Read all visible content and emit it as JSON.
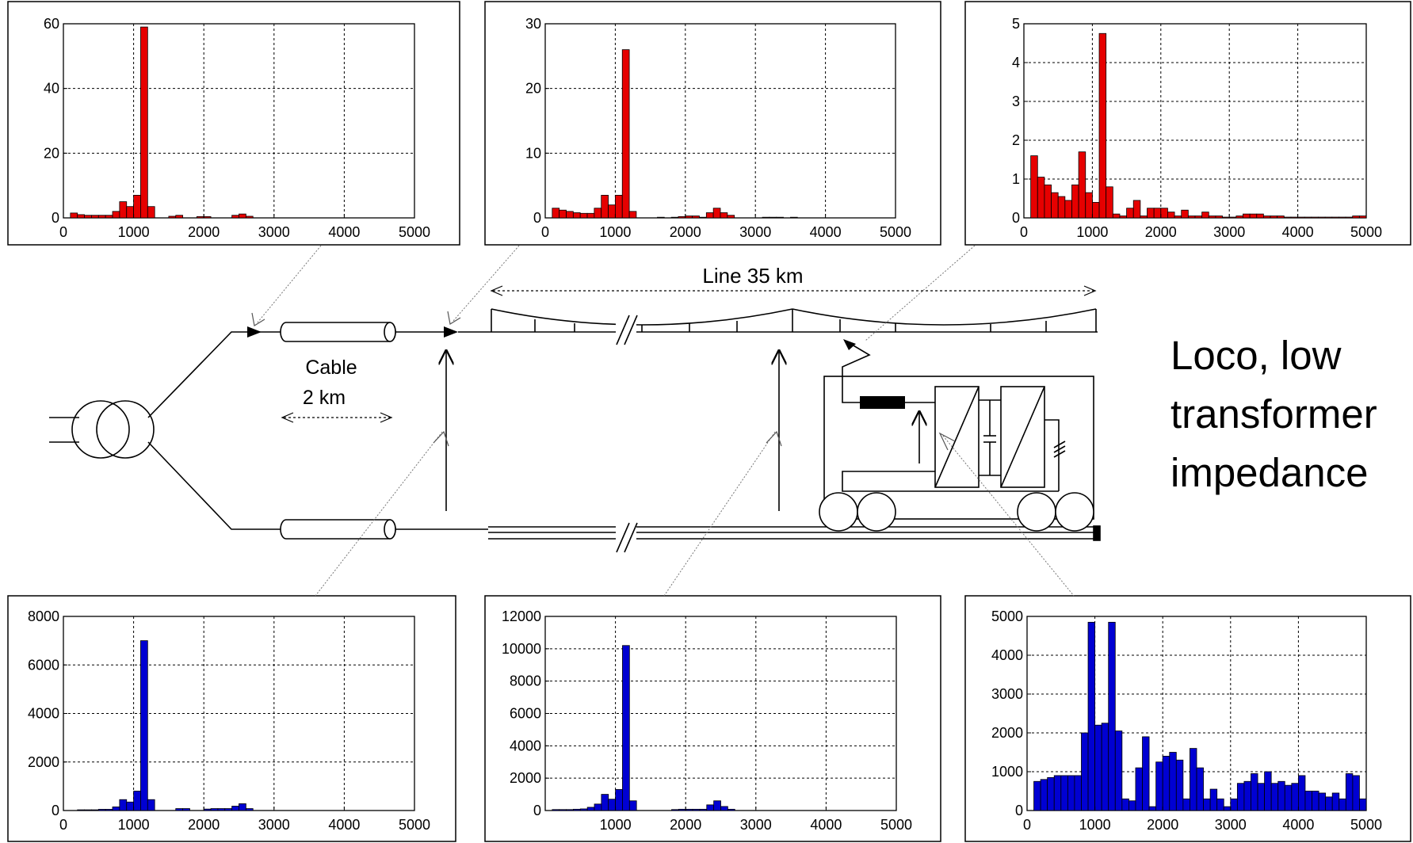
{
  "diagram": {
    "line_label": "Line 35 km",
    "cable_label_1": "Cable",
    "cable_label_2": "2 km",
    "loco_label": [
      "Loco, low",
      "transformer",
      "impedance"
    ]
  },
  "colors": {
    "red": "#e60000",
    "blue": "#0000d2",
    "line": "#000000"
  },
  "chart_data": [
    {
      "type": "bar",
      "color": "red",
      "xlim": [
        0,
        5000
      ],
      "ylim": [
        0,
        60
      ],
      "xticks": [
        0,
        1000,
        2000,
        3000,
        4000,
        5000
      ],
      "yticks": [
        0,
        20,
        40,
        60
      ],
      "x": [
        150,
        250,
        350,
        450,
        550,
        650,
        750,
        850,
        950,
        1050,
        1150,
        1250,
        1550,
        1650,
        1950,
        2050,
        2450,
        2550,
        2650
      ],
      "values": [
        1.5,
        1,
        0.8,
        0.8,
        0.8,
        0.8,
        2,
        5,
        3.5,
        7,
        59,
        3.5,
        0.5,
        0.8,
        0.4,
        0.4,
        0.8,
        1.2,
        0.5
      ]
    },
    {
      "type": "bar",
      "color": "red",
      "xlim": [
        0,
        5000
      ],
      "ylim": [
        0,
        30
      ],
      "xticks": [
        0,
        1000,
        2000,
        3000,
        4000,
        5000
      ],
      "yticks": [
        0,
        10,
        20,
        30
      ],
      "x": [
        150,
        250,
        350,
        450,
        550,
        650,
        750,
        850,
        950,
        1050,
        1150,
        1250,
        1650,
        1850,
        1950,
        2050,
        2150,
        2250,
        2350,
        2450,
        2550,
        2650,
        3150,
        3250,
        3350,
        3550
      ],
      "values": [
        1.5,
        1.2,
        1,
        0.8,
        0.7,
        0.7,
        1.5,
        3.5,
        2,
        3.5,
        26,
        1,
        0.1,
        0.1,
        0.2,
        0.3,
        0.3,
        0.1,
        0.8,
        1.5,
        0.8,
        0.4,
        0.1,
        0.1,
        0.1,
        0.1
      ]
    },
    {
      "type": "bar",
      "color": "red",
      "xlim": [
        0,
        5000
      ],
      "ylim": [
        0,
        5
      ],
      "xticks": [
        0,
        1000,
        2000,
        3000,
        4000,
        5000
      ],
      "yticks": [
        0,
        1,
        2,
        3,
        4,
        5
      ],
      "x": [
        150,
        250,
        350,
        450,
        550,
        650,
        750,
        850,
        950,
        1050,
        1150,
        1250,
        1350,
        1450,
        1550,
        1650,
        1750,
        1850,
        1950,
        2050,
        2150,
        2250,
        2350,
        2450,
        2550,
        2650,
        2750,
        2850,
        2950,
        3050,
        3150,
        3250,
        3350,
        3450,
        3550,
        3650,
        3750,
        3850,
        3950,
        4050,
        4150,
        4250,
        4350,
        4450,
        4550,
        4650,
        4750,
        4850,
        4950
      ],
      "values": [
        1.6,
        1.05,
        0.85,
        0.65,
        0.55,
        0.45,
        0.85,
        1.7,
        0.65,
        0.4,
        4.75,
        0.8,
        0.1,
        0.05,
        0.25,
        0.45,
        0.05,
        0.25,
        0.25,
        0.25,
        0.15,
        0.05,
        0.2,
        0.05,
        0.05,
        0.15,
        0.05,
        0.05,
        0.02,
        0.02,
        0.05,
        0.1,
        0.1,
        0.1,
        0.05,
        0.05,
        0.05,
        0.02,
        0.02,
        0.02,
        0.02,
        0.02,
        0.02,
        0.02,
        0.02,
        0.02,
        0.02,
        0.05,
        0.05
      ]
    },
    {
      "type": "bar",
      "color": "blue",
      "xlim": [
        0,
        5000
      ],
      "ylim": [
        0,
        8000
      ],
      "xticks": [
        0,
        1000,
        2000,
        3000,
        4000,
        5000
      ],
      "yticks": [
        0,
        2000,
        4000,
        6000,
        8000
      ],
      "x": [
        250,
        350,
        450,
        550,
        650,
        750,
        850,
        950,
        1050,
        1150,
        1250,
        1650,
        1750,
        2050,
        2150,
        2250,
        2350,
        2450,
        2550,
        2650
      ],
      "values": [
        30,
        30,
        30,
        50,
        50,
        150,
        450,
        350,
        800,
        7000,
        450,
        80,
        80,
        60,
        80,
        80,
        80,
        180,
        280,
        80
      ]
    },
    {
      "type": "bar",
      "color": "blue",
      "xlim": [
        0,
        5000
      ],
      "ylim": [
        0,
        12000
      ],
      "xticks": [
        1000,
        2000,
        3000,
        4000,
        5000
      ],
      "yticks": [
        0,
        2000,
        4000,
        6000,
        8000,
        10000,
        12000
      ],
      "x": [
        150,
        250,
        350,
        450,
        550,
        650,
        750,
        850,
        950,
        1050,
        1150,
        1250,
        1850,
        1950,
        2050,
        2150,
        2250,
        2350,
        2450,
        2550,
        2650
      ],
      "values": [
        60,
        60,
        60,
        80,
        100,
        200,
        400,
        1000,
        700,
        1300,
        10200,
        600,
        60,
        80,
        80,
        80,
        80,
        350,
        600,
        250,
        80
      ]
    },
    {
      "type": "bar",
      "color": "blue",
      "xlim": [
        0,
        5000
      ],
      "ylim": [
        0,
        5000
      ],
      "xticks": [
        0,
        1000,
        2000,
        3000,
        4000,
        5000
      ],
      "yticks": [
        0,
        1000,
        2000,
        3000,
        4000,
        5000
      ],
      "x": [
        150,
        250,
        350,
        450,
        550,
        650,
        750,
        850,
        950,
        1050,
        1150,
        1250,
        1350,
        1450,
        1550,
        1650,
        1750,
        1850,
        1950,
        2050,
        2150,
        2250,
        2350,
        2450,
        2550,
        2650,
        2750,
        2850,
        2950,
        3050,
        3150,
        3250,
        3350,
        3450,
        3550,
        3650,
        3750,
        3850,
        3950,
        4050,
        4150,
        4250,
        4350,
        4450,
        4550,
        4650,
        4750,
        4850,
        4950
      ],
      "values": [
        750,
        800,
        850,
        900,
        900,
        900,
        900,
        2000,
        4850,
        2200,
        2250,
        4850,
        2050,
        300,
        250,
        1100,
        1900,
        100,
        1250,
        1400,
        1500,
        1300,
        300,
        1600,
        1100,
        300,
        550,
        300,
        100,
        300,
        700,
        750,
        950,
        700,
        1000,
        700,
        750,
        650,
        700,
        900,
        500,
        500,
        450,
        350,
        450,
        300,
        950,
        900,
        300
      ]
    }
  ]
}
